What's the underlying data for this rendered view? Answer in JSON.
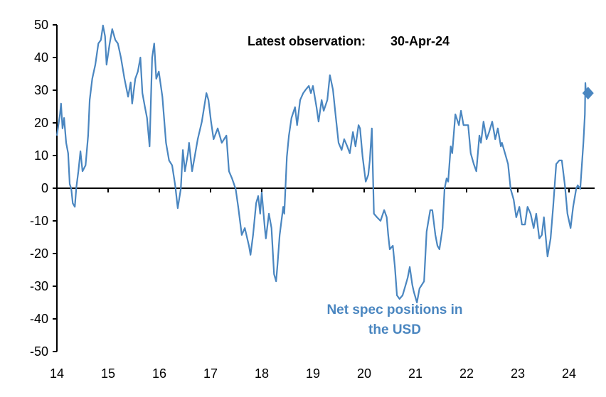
{
  "chart_data": {
    "type": "line",
    "title": "",
    "xlabel": "",
    "ylabel": "",
    "xlim": [
      14,
      24.5
    ],
    "ylim": [
      -50,
      50
    ],
    "x_ticks": [
      14,
      15,
      16,
      17,
      18,
      19,
      20,
      21,
      22,
      23,
      24
    ],
    "x_tick_labels": [
      "14",
      "15",
      "16",
      "17",
      "18",
      "19",
      "20",
      "21",
      "22",
      "23",
      "24"
    ],
    "y_ticks": [
      50,
      40,
      30,
      20,
      10,
      0,
      -10,
      -20,
      -30,
      -40,
      -50
    ],
    "y_tick_labels": [
      "50",
      "40",
      "30",
      "20",
      "10",
      "0",
      "-10",
      "-20",
      "-30",
      "-40",
      "-50"
    ],
    "grid": false,
    "line_color": "#4a86c0",
    "annotation": {
      "line1": "Net spec positions in",
      "line2": "the USD",
      "color": "#4a86c0"
    },
    "latest_label": "Latest observation:",
    "latest_date": "30-Apr-24",
    "latest_point": [
      24.33,
      29.1
    ],
    "series": [
      {
        "points": [
          [
            14.0,
            16.1
          ],
          [
            14.06,
            22.6
          ],
          [
            14.08,
            25.9
          ],
          [
            14.11,
            18.3
          ],
          [
            14.14,
            21.5
          ],
          [
            14.18,
            13.9
          ],
          [
            14.22,
            10.7
          ],
          [
            14.25,
            1.3
          ],
          [
            14.28,
            -0.2
          ],
          [
            14.31,
            -4.6
          ],
          [
            14.35,
            -5.7
          ],
          [
            14.38,
            0.4
          ],
          [
            14.42,
            5.2
          ],
          [
            14.46,
            11.3
          ],
          [
            14.5,
            5.2
          ],
          [
            14.56,
            7.0
          ],
          [
            14.61,
            16.1
          ],
          [
            14.64,
            27.0
          ],
          [
            14.69,
            33.5
          ],
          [
            14.75,
            37.8
          ],
          [
            14.81,
            44.3
          ],
          [
            14.86,
            45.4
          ],
          [
            14.9,
            49.8
          ],
          [
            14.94,
            46.5
          ],
          [
            14.97,
            37.8
          ],
          [
            15.03,
            44.3
          ],
          [
            15.08,
            48.7
          ],
          [
            15.14,
            45.4
          ],
          [
            15.19,
            44.3
          ],
          [
            15.25,
            40.0
          ],
          [
            15.32,
            33.5
          ],
          [
            15.39,
            28.0
          ],
          [
            15.44,
            32.4
          ],
          [
            15.47,
            25.9
          ],
          [
            15.53,
            33.5
          ],
          [
            15.58,
            35.7
          ],
          [
            15.63,
            40.0
          ],
          [
            15.67,
            29.1
          ],
          [
            15.72,
            24.8
          ],
          [
            15.76,
            21.5
          ],
          [
            15.81,
            12.8
          ],
          [
            15.86,
            40.0
          ],
          [
            15.9,
            44.3
          ],
          [
            15.94,
            33.5
          ],
          [
            15.99,
            35.7
          ],
          [
            16.06,
            28.0
          ],
          [
            16.13,
            13.9
          ],
          [
            16.19,
            8.5
          ],
          [
            16.25,
            7.0
          ],
          [
            16.31,
            0.9
          ],
          [
            16.36,
            -6.1
          ],
          [
            16.42,
            -0.2
          ],
          [
            16.46,
            11.7
          ],
          [
            16.5,
            5.2
          ],
          [
            16.56,
            10.7
          ],
          [
            16.58,
            13.9
          ],
          [
            16.64,
            5.2
          ],
          [
            16.69,
            9.6
          ],
          [
            16.75,
            15.0
          ],
          [
            16.83,
            20.4
          ],
          [
            16.92,
            29.1
          ],
          [
            16.96,
            27.0
          ],
          [
            17.01,
            20.4
          ],
          [
            17.06,
            15.0
          ],
          [
            17.14,
            18.3
          ],
          [
            17.22,
            13.9
          ],
          [
            17.31,
            16.1
          ],
          [
            17.36,
            5.2
          ],
          [
            17.42,
            3.0
          ],
          [
            17.49,
            -0.2
          ],
          [
            17.54,
            -5.7
          ],
          [
            17.61,
            -14.3
          ],
          [
            17.67,
            -12.2
          ],
          [
            17.75,
            -17.6
          ],
          [
            17.78,
            -20.4
          ],
          [
            17.83,
            -14.3
          ],
          [
            17.89,
            -4.6
          ],
          [
            17.93,
            -2.4
          ],
          [
            17.97,
            -7.8
          ],
          [
            18.0,
            -1.3
          ],
          [
            18.06,
            -12.2
          ],
          [
            18.08,
            -15.4
          ],
          [
            18.14,
            -7.8
          ],
          [
            18.19,
            -12.2
          ],
          [
            18.24,
            -26.3
          ],
          [
            18.28,
            -28.5
          ],
          [
            18.31,
            -23.0
          ],
          [
            18.35,
            -14.3
          ],
          [
            18.42,
            -5.7
          ],
          [
            18.44,
            -7.8
          ],
          [
            18.49,
            9.6
          ],
          [
            18.53,
            16.1
          ],
          [
            18.58,
            21.5
          ],
          [
            18.65,
            24.8
          ],
          [
            18.69,
            19.3
          ],
          [
            18.75,
            27.0
          ],
          [
            18.81,
            29.1
          ],
          [
            18.86,
            30.2
          ],
          [
            18.92,
            31.3
          ],
          [
            18.96,
            29.1
          ],
          [
            19.0,
            31.3
          ],
          [
            19.07,
            24.8
          ],
          [
            19.11,
            20.4
          ],
          [
            19.17,
            27.0
          ],
          [
            19.21,
            23.7
          ],
          [
            19.28,
            27.0
          ],
          [
            19.33,
            34.6
          ],
          [
            19.39,
            30.2
          ],
          [
            19.44,
            22.6
          ],
          [
            19.5,
            13.9
          ],
          [
            19.56,
            11.7
          ],
          [
            19.61,
            15.0
          ],
          [
            19.67,
            12.8
          ],
          [
            19.72,
            10.7
          ],
          [
            19.78,
            17.2
          ],
          [
            19.83,
            12.8
          ],
          [
            19.89,
            19.3
          ],
          [
            19.92,
            18.3
          ],
          [
            19.97,
            9.6
          ],
          [
            20.03,
            2.0
          ],
          [
            20.08,
            4.1
          ],
          [
            20.11,
            8.5
          ],
          [
            20.15,
            18.3
          ],
          [
            20.19,
            -7.8
          ],
          [
            20.25,
            -8.9
          ],
          [
            20.32,
            -10.0
          ],
          [
            20.39,
            -6.7
          ],
          [
            20.44,
            -8.9
          ],
          [
            20.47,
            -14.3
          ],
          [
            20.5,
            -18.7
          ],
          [
            20.56,
            -17.6
          ],
          [
            20.6,
            -24.1
          ],
          [
            20.64,
            -32.8
          ],
          [
            20.69,
            -33.9
          ],
          [
            20.75,
            -32.8
          ],
          [
            20.81,
            -29.6
          ],
          [
            20.85,
            -27.4
          ],
          [
            20.89,
            -24.1
          ],
          [
            20.94,
            -29.6
          ],
          [
            20.97,
            -31.7
          ],
          [
            21.03,
            -35.0
          ],
          [
            21.08,
            -30.7
          ],
          [
            21.17,
            -28.5
          ],
          [
            21.22,
            -13.3
          ],
          [
            21.29,
            -6.7
          ],
          [
            21.33,
            -6.7
          ],
          [
            21.39,
            -14.3
          ],
          [
            21.43,
            -17.6
          ],
          [
            21.47,
            -18.7
          ],
          [
            21.53,
            -12.2
          ],
          [
            21.57,
            -0.2
          ],
          [
            21.61,
            3.0
          ],
          [
            21.64,
            2.0
          ],
          [
            21.69,
            12.8
          ],
          [
            21.72,
            10.7
          ],
          [
            21.78,
            22.6
          ],
          [
            21.85,
            19.3
          ],
          [
            21.89,
            23.7
          ],
          [
            21.94,
            19.3
          ],
          [
            22.03,
            19.3
          ],
          [
            22.08,
            10.7
          ],
          [
            22.14,
            7.4
          ],
          [
            22.19,
            5.2
          ],
          [
            22.25,
            16.1
          ],
          [
            22.28,
            13.9
          ],
          [
            22.33,
            20.4
          ],
          [
            22.39,
            15.0
          ],
          [
            22.44,
            17.2
          ],
          [
            22.5,
            20.4
          ],
          [
            22.56,
            15.0
          ],
          [
            22.61,
            18.3
          ],
          [
            22.67,
            12.8
          ],
          [
            22.69,
            13.9
          ],
          [
            22.75,
            10.7
          ],
          [
            22.81,
            7.4
          ],
          [
            22.86,
            -0.2
          ],
          [
            22.92,
            -3.5
          ],
          [
            22.97,
            -8.9
          ],
          [
            23.03,
            -5.7
          ],
          [
            23.08,
            -11.1
          ],
          [
            23.14,
            -11.1
          ],
          [
            23.19,
            -5.7
          ],
          [
            23.25,
            -7.8
          ],
          [
            23.31,
            -12.2
          ],
          [
            23.36,
            -7.8
          ],
          [
            23.42,
            -15.4
          ],
          [
            23.47,
            -14.3
          ],
          [
            23.51,
            -8.9
          ],
          [
            23.58,
            -20.9
          ],
          [
            23.64,
            -15.4
          ],
          [
            23.69,
            -5.7
          ],
          [
            23.75,
            7.4
          ],
          [
            23.81,
            8.5
          ],
          [
            23.86,
            8.5
          ],
          [
            23.92,
            0.9
          ],
          [
            23.97,
            -7.8
          ],
          [
            24.03,
            -12.2
          ],
          [
            24.08,
            -5.7
          ],
          [
            24.14,
            -0.2
          ],
          [
            24.17,
            0.9
          ],
          [
            24.22,
            -0.2
          ],
          [
            24.28,
            13.9
          ],
          [
            24.31,
            22.6
          ],
          [
            24.32,
            32.2
          ],
          [
            24.33,
            29.1
          ]
        ]
      }
    ]
  }
}
